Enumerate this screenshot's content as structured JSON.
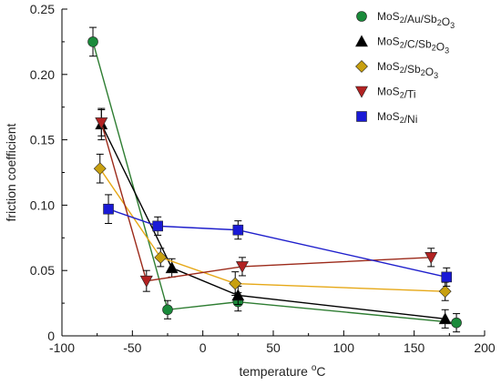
{
  "chart_data": {
    "type": "line",
    "title": "",
    "xlabel_main": "temperature ",
    "xlabel_sup": "o",
    "xlabel_unit": "C",
    "ylabel": "friction coefficient",
    "xlim": [
      -100,
      200
    ],
    "ylim": [
      0,
      0.25
    ],
    "xticks": [
      -100,
      -50,
      0,
      50,
      100,
      150,
      200
    ],
    "yticks": [
      0,
      0.05,
      0.1,
      0.15,
      0.2,
      0.25
    ],
    "xtick_labels": [
      "-100",
      "-50",
      "0",
      "50",
      "100",
      "150",
      "200"
    ],
    "ytick_labels": [
      "0",
      "0.05",
      "0.10",
      "0.15",
      "0.20",
      "0.25"
    ],
    "legend_position": "top-right",
    "series": [
      {
        "name": "MoS2/Au/Sb2O3",
        "legend_parts": [
          [
            "MoS",
            ""
          ],
          [
            "2",
            "sub"
          ],
          [
            "/Au/Sb",
            ""
          ],
          [
            "2",
            "sub"
          ],
          [
            "O",
            ""
          ],
          [
            "3",
            "sub"
          ]
        ],
        "marker": "circle",
        "color": "#1a8a3a",
        "line_color": "#2e7d32",
        "x": [
          -78,
          -25,
          25,
          180
        ],
        "y": [
          0.225,
          0.02,
          0.026,
          0.01
        ],
        "err": [
          0.011,
          0.007,
          0.007,
          0.007
        ]
      },
      {
        "name": "MoS2/C/Sb2O3",
        "legend_parts": [
          [
            "MoS",
            ""
          ],
          [
            "2",
            "sub"
          ],
          [
            "/C/Sb",
            ""
          ],
          [
            "2",
            "sub"
          ],
          [
            "O",
            ""
          ],
          [
            "3",
            "sub"
          ]
        ],
        "marker": "triangle-up",
        "color": "#000000",
        "line_color": "#000000",
        "x": [
          -72,
          -22,
          25,
          172
        ],
        "y": [
          0.162,
          0.052,
          0.031,
          0.013
        ],
        "err": [
          0.012,
          0.007,
          0.007,
          0.007
        ]
      },
      {
        "name": "MoS2/Sb2O3",
        "legend_parts": [
          [
            "MoS",
            ""
          ],
          [
            "2",
            "sub"
          ],
          [
            "/Sb",
            ""
          ],
          [
            "2",
            "sub"
          ],
          [
            "O",
            ""
          ],
          [
            "3",
            "sub"
          ]
        ],
        "marker": "diamond",
        "color": "#c8a010",
        "line_color": "#e6a817",
        "x": [
          -73,
          -30,
          23,
          172
        ],
        "y": [
          0.128,
          0.06,
          0.04,
          0.034
        ],
        "err": [
          0.011,
          0.007,
          0.009,
          0.007
        ]
      },
      {
        "name": "MoS2/Ti",
        "legend_parts": [
          [
            "MoS",
            ""
          ],
          [
            "2",
            "sub"
          ],
          [
            "/Ti",
            ""
          ]
        ],
        "marker": "triangle-down",
        "color": "#b22222",
        "line_color": "#9c2a1a",
        "x": [
          -72,
          -40,
          28,
          162
        ],
        "y": [
          0.163,
          0.042,
          0.053,
          0.06
        ],
        "err": [
          0.01,
          0.008,
          0.007,
          0.007
        ]
      },
      {
        "name": "MoS2/Ni",
        "legend_parts": [
          [
            "MoS",
            ""
          ],
          [
            "2",
            "sub"
          ],
          [
            "/Ni",
            ""
          ]
        ],
        "marker": "square",
        "color": "#1a1ad6",
        "line_color": "#1f1fcc",
        "x": [
          -67,
          -32,
          25,
          173
        ],
        "y": [
          0.097,
          0.084,
          0.081,
          0.045
        ],
        "err": [
          0.011,
          0.007,
          0.007,
          0.007
        ]
      }
    ]
  }
}
